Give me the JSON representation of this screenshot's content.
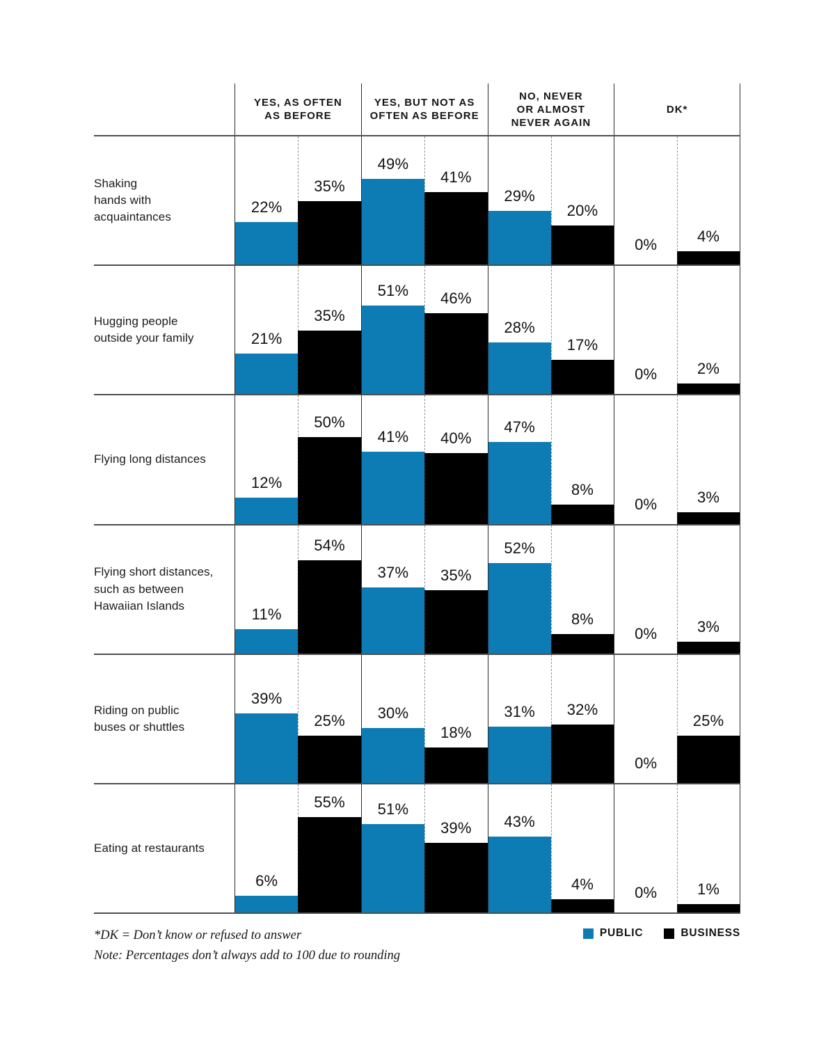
{
  "header": {
    "columns": [
      "YES, AS OFTEN\nAS BEFORE",
      "YES, BUT NOT AS\nOFTEN AS BEFORE",
      "NO, NEVER\nOR ALMOST\nNEVER AGAIN",
      "DK*"
    ]
  },
  "chart_data": {
    "type": "bar",
    "unit": "percent",
    "layout": "grouped-bar table: rows are activities, columns are answer categories, each cell has Public (blue, left) and Business (black, right) bars rising from the row baseline",
    "series_names": [
      "Public",
      "Business"
    ],
    "column_categories": [
      "Yes, as often as before",
      "Yes, but not as often as before",
      "No, never or almost never again",
      "DK*"
    ],
    "rows": [
      {
        "label": "Shaking\nhands with\nacquaintances",
        "public": [
          22,
          49,
          29,
          0
        ],
        "business": [
          35,
          41,
          20,
          4
        ]
      },
      {
        "label": "Hugging people\noutside your family",
        "public": [
          21,
          51,
          28,
          0
        ],
        "business": [
          35,
          46,
          17,
          2
        ]
      },
      {
        "label": "Flying long distances",
        "public": [
          12,
          41,
          47,
          0
        ],
        "business": [
          50,
          40,
          8,
          3
        ]
      },
      {
        "label": "Flying short distances,\nsuch as between\nHawaiian Islands",
        "public": [
          11,
          37,
          52,
          0
        ],
        "business": [
          54,
          35,
          8,
          3
        ]
      },
      {
        "label": "Riding on public\nbuses or shuttles",
        "public": [
          39,
          30,
          31,
          0
        ],
        "business": [
          25,
          18,
          32,
          25
        ]
      },
      {
        "label": "Eating at restaurants",
        "public": [
          6,
          51,
          43,
          0
        ],
        "business": [
          55,
          39,
          4,
          1
        ]
      }
    ],
    "ylim": [
      0,
      100
    ],
    "grid": "dashed vertical midline per column, solid row separators",
    "legend_position": "bottom-right"
  },
  "footnotes": [
    "*DK = Don’t know or refused to answer",
    "Note: Percentages don’t always add to 100 due to rounding"
  ],
  "legend": {
    "public_label": "PUBLIC",
    "business_label": "BUSINESS"
  },
  "colors": {
    "public": "#0e7cb4",
    "business": "#000000",
    "line": "#4e4e4e"
  }
}
